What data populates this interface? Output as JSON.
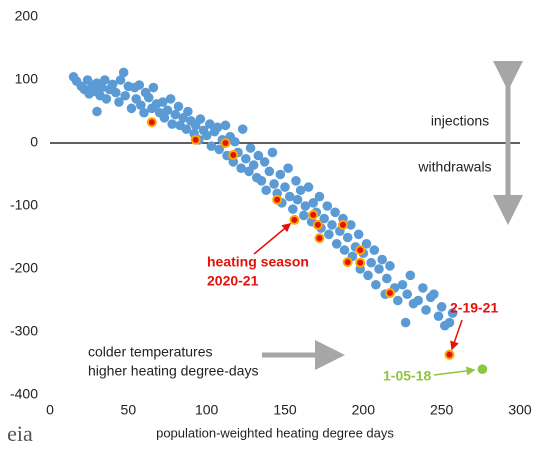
{
  "chart_data": {
    "type": "scatter",
    "xlabel": "population-weighted heating degree days",
    "xlim": [
      0,
      300
    ],
    "xticks": [
      0,
      50,
      100,
      150,
      200,
      250,
      300
    ],
    "ylim": [
      -400,
      200
    ],
    "yticks": [
      -400,
      -300,
      -200,
      -100,
      0,
      100,
      200
    ],
    "series": [
      {
        "color": "#5b9bd5",
        "x": [
          15,
          17,
          20,
          22,
          24,
          25,
          27,
          28,
          30,
          32,
          33,
          35,
          36,
          38,
          40,
          42,
          44,
          45,
          47,
          48,
          50,
          52,
          54,
          55,
          57,
          58,
          60,
          61,
          63,
          65,
          66,
          68,
          70,
          72,
          73,
          75,
          77,
          78,
          80,
          82,
          83,
          85,
          87,
          88,
          90,
          92,
          93,
          95,
          96,
          98,
          100,
          102,
          103,
          105,
          107,
          108,
          110,
          112,
          113,
          115,
          117,
          118,
          120,
          122,
          123,
          125,
          127,
          128,
          130,
          132,
          133,
          135,
          137,
          138,
          140,
          142,
          143,
          145,
          147,
          148,
          150,
          152,
          153,
          155,
          157,
          158,
          160,
          162,
          163,
          165,
          167,
          168,
          170,
          172,
          173,
          175,
          177,
          178,
          180,
          182,
          183,
          185,
          187,
          188,
          190,
          192,
          193,
          195,
          197,
          198,
          200,
          202,
          203,
          205,
          207,
          208,
          210,
          212,
          214,
          215,
          217,
          220,
          222,
          225,
          227,
          228,
          230,
          232,
          235,
          238,
          240,
          243,
          245,
          248,
          250,
          252,
          255,
          257,
          30,
          28
        ],
        "values": [
          105,
          98,
          90,
          85,
          100,
          78,
          92,
          82,
          95,
          75,
          88,
          100,
          70,
          85,
          93,
          80,
          65,
          100,
          112,
          75,
          90,
          55,
          88,
          70,
          92,
          60,
          48,
          80,
          72,
          55,
          88,
          62,
          48,
          65,
          40,
          52,
          70,
          30,
          45,
          58,
          28,
          40,
          22,
          50,
          35,
          15,
          28,
          5,
          38,
          20,
          12,
          30,
          -5,
          18,
          25,
          -10,
          5,
          28,
          -20,
          10,
          -30,
          2,
          -15,
          -40,
          22,
          -25,
          -45,
          -8,
          -35,
          -55,
          -20,
          -60,
          -30,
          -75,
          -45,
          -15,
          -65,
          -80,
          -50,
          -95,
          -70,
          -40,
          -85,
          -105,
          -60,
          -90,
          -75,
          -115,
          -100,
          -70,
          -125,
          -95,
          -110,
          -85,
          -135,
          -120,
          -100,
          -145,
          -130,
          -110,
          -160,
          -140,
          -120,
          -170,
          -150,
          -130,
          -180,
          -165,
          -145,
          -200,
          -175,
          -160,
          -210,
          -190,
          -170,
          -225,
          -200,
          -185,
          -240,
          -215,
          -195,
          -230,
          -250,
          -225,
          -285,
          -240,
          -210,
          -255,
          -250,
          -230,
          -265,
          -245,
          -240,
          -275,
          -260,
          -290,
          -285,
          -270,
          50,
          90
        ]
      },
      {
        "color": "#e3120b",
        "x": [
          65,
          93,
          112,
          117,
          145,
          156,
          168,
          171,
          172,
          187,
          190,
          198,
          198,
          217,
          255
        ],
        "values": [
          33,
          5,
          0,
          -19,
          -90,
          -122,
          -114,
          -130,
          -151,
          -130,
          -189,
          -190,
          -170,
          -238,
          -336
        ]
      },
      {
        "color": "#8dc63f",
        "x": [
          276
        ],
        "values": [
          -359
        ]
      }
    ],
    "annotations": [
      "injections",
      "withdrawals",
      "heating season",
      "2020-21",
      "2-19-21",
      "1-05-18",
      "colder temperatures",
      "higher heating degree-days"
    ],
    "logo": "eia"
  }
}
